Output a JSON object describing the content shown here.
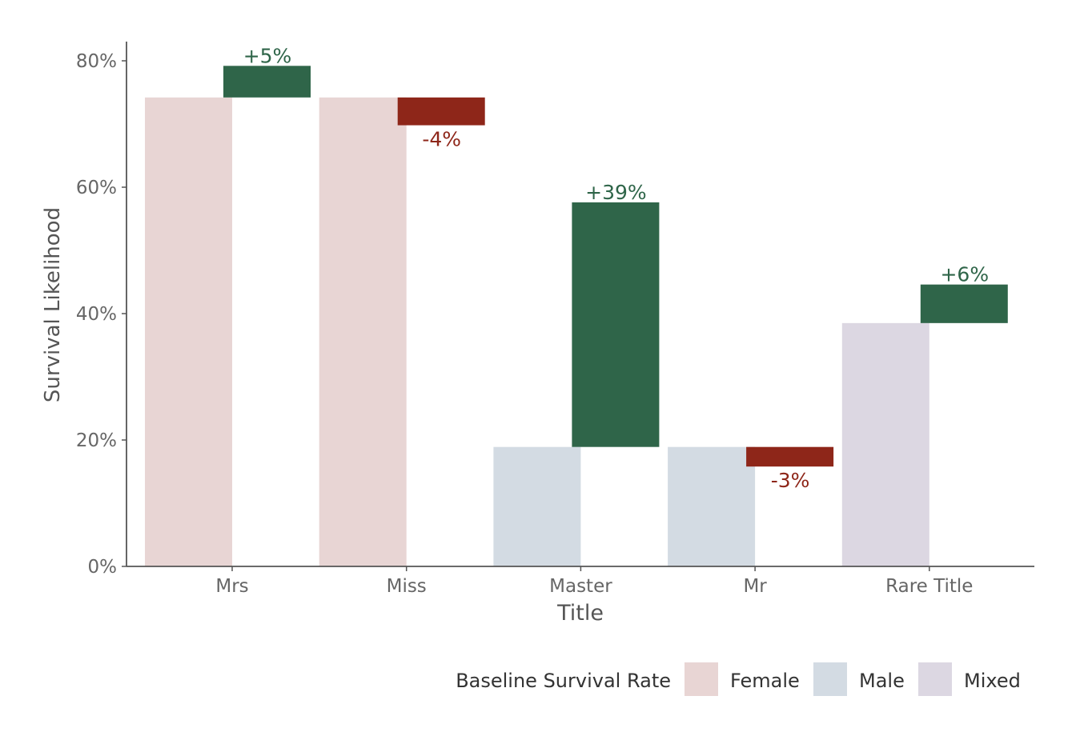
{
  "chart_data": {
    "type": "bar",
    "subtype": "waterfall",
    "xlabel": "Title",
    "ylabel": "Survival Likelihood",
    "ylim": [
      0,
      0.8
    ],
    "yticks": [
      0,
      0.2,
      0.4,
      0.6,
      0.8
    ],
    "ytick_labels": [
      "0%",
      "20%",
      "40%",
      "60%",
      "80%"
    ],
    "categories": [
      "Mrs",
      "Miss",
      "Master",
      "Mr",
      "Rare Title"
    ],
    "baseline_group": [
      "Female",
      "Female",
      "Male",
      "Male",
      "Mixed"
    ],
    "baseline": [
      0.742,
      0.742,
      0.189,
      0.189,
      0.385
    ],
    "delta": [
      0.05,
      -0.044,
      0.387,
      -0.031,
      0.061
    ],
    "delta_labels": [
      "+5%",
      "-4%",
      "+39%",
      "-3%",
      "+6%"
    ],
    "grid": false,
    "legend": {
      "title": "Baseline Survival Rate",
      "position": "bottom-right",
      "entries": [
        {
          "name": "Female",
          "color": "#e8d5d4"
        },
        {
          "name": "Male",
          "color": "#d3dbe3"
        },
        {
          "name": "Mixed",
          "color": "#dcd7e2"
        }
      ]
    },
    "colors": {
      "positive": "#2f6549",
      "negative": "#8e2619",
      "axis": "#555555",
      "tick_text": "#666666"
    }
  }
}
